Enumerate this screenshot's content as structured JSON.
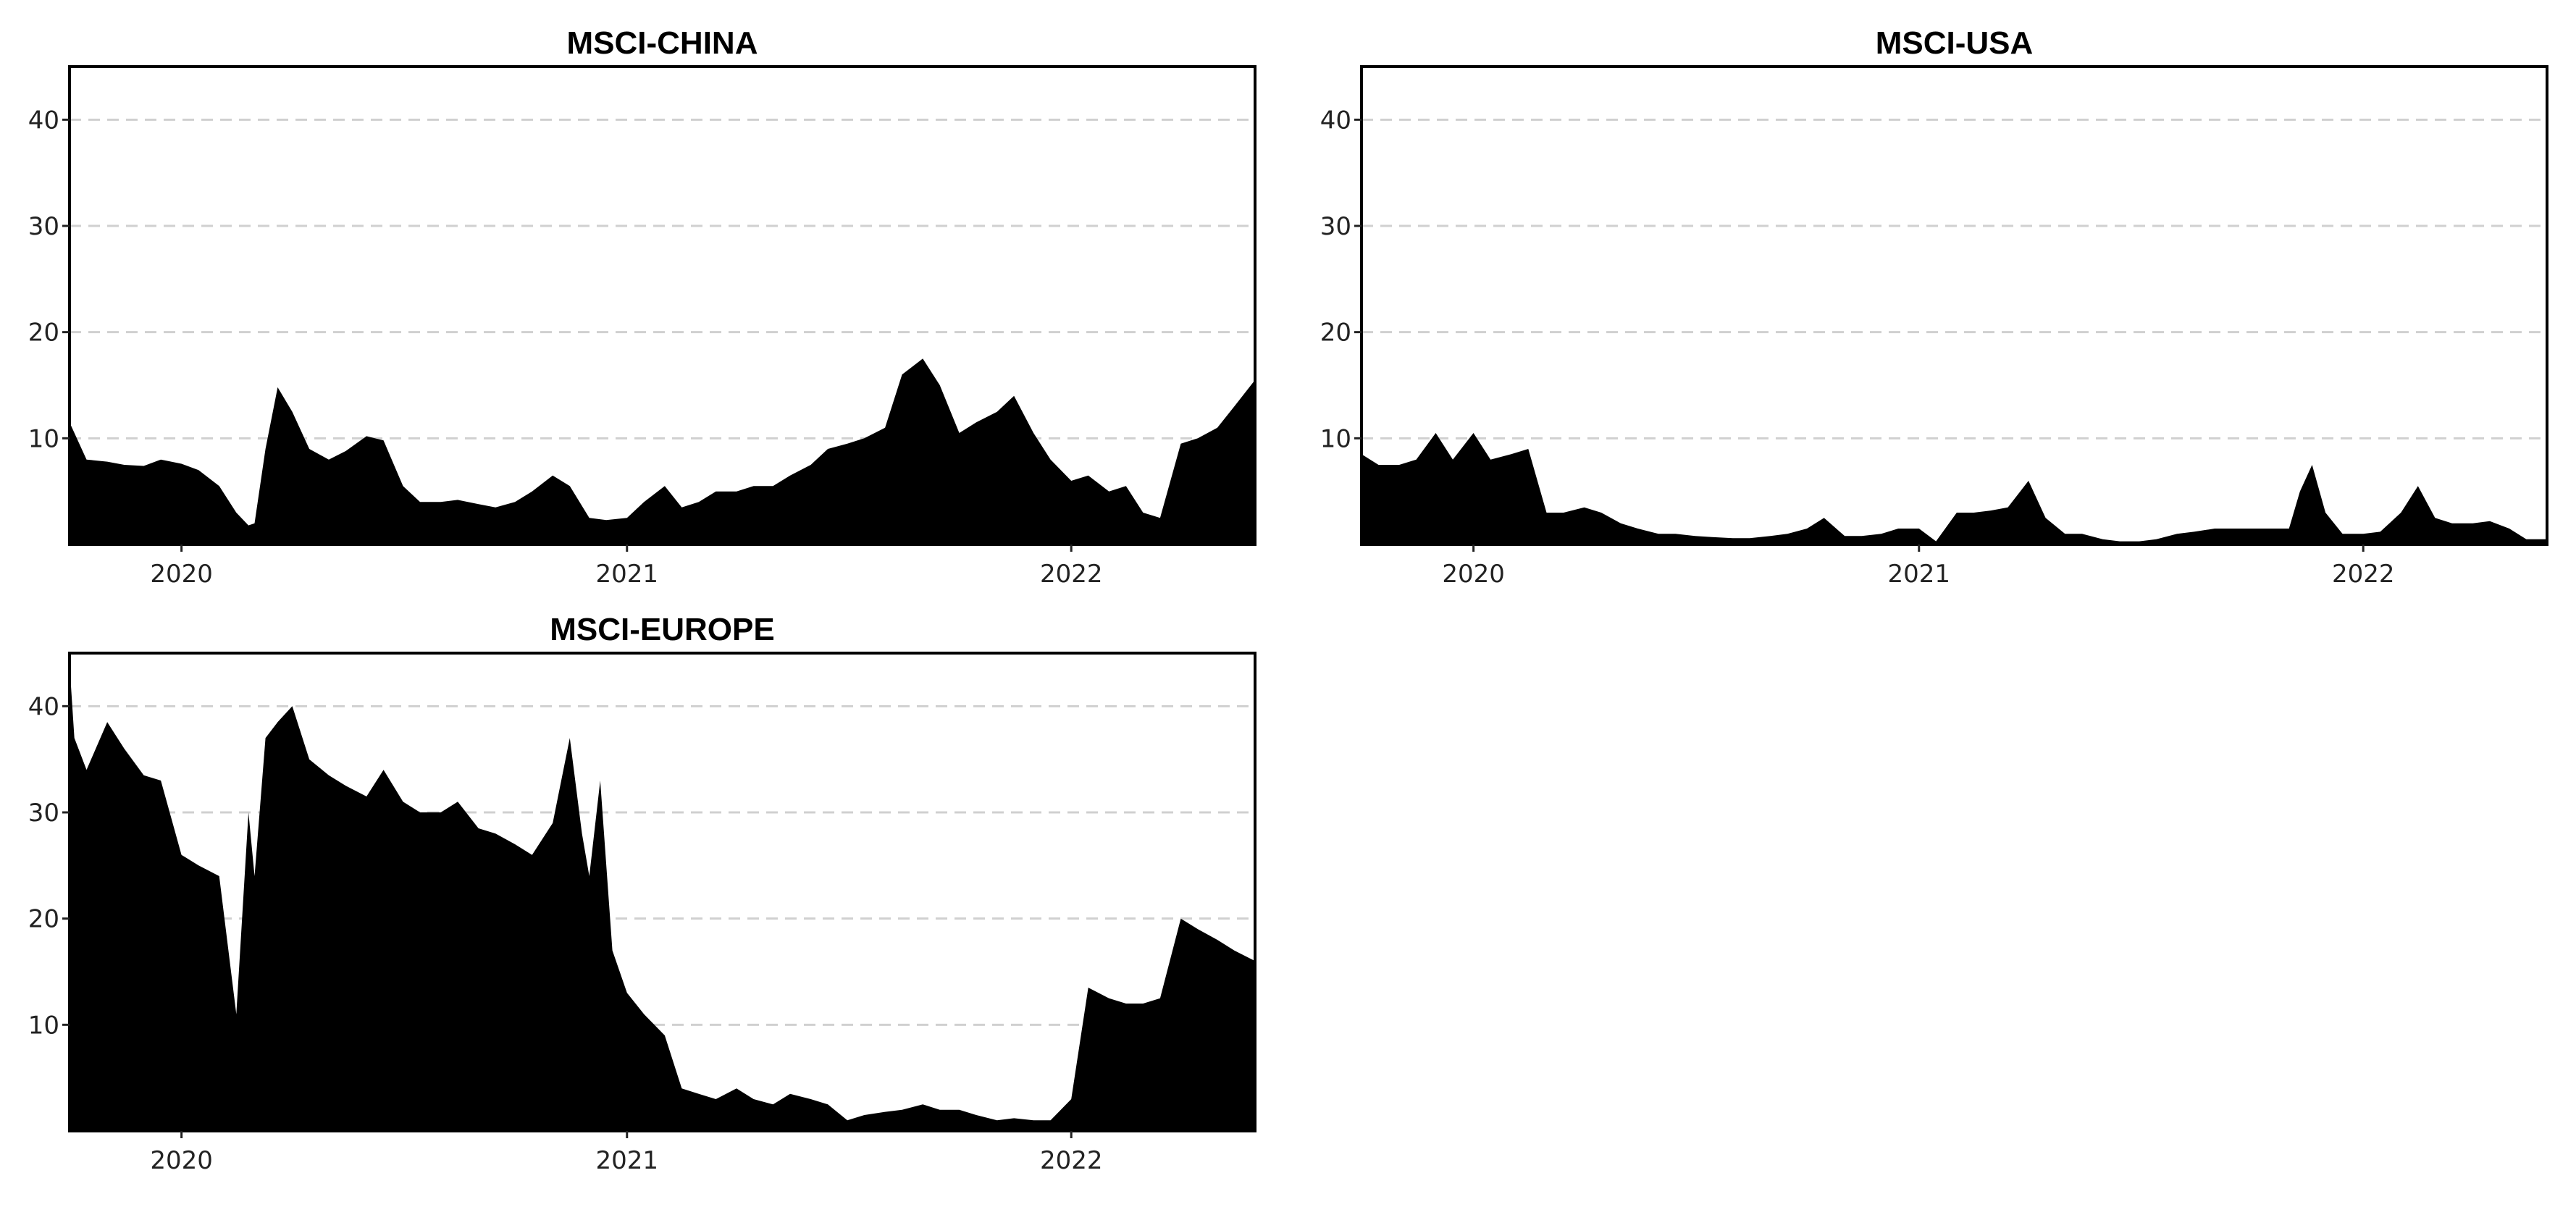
{
  "chart_data": [
    {
      "type": "area",
      "title": "MSCI-CHINA",
      "xlabel": "",
      "ylabel": "",
      "ylim": [
        0,
        45
      ],
      "xlim": [
        "2019-10-01",
        "2022-06-01"
      ],
      "yticks": [
        "10",
        "20",
        "30",
        "40"
      ],
      "xticks": [
        "2020",
        "2021",
        "2022"
      ],
      "grid": "horizontal dashed",
      "legend": "none",
      "color": "#000000",
      "x": [
        "2019-10-01",
        "2019-10-15",
        "2019-11-01",
        "2019-11-15",
        "2019-12-01",
        "2019-12-15",
        "2020-01-01",
        "2020-01-15",
        "2020-02-01",
        "2020-02-15",
        "2020-02-25",
        "2020-03-01",
        "2020-03-10",
        "2020-03-20",
        "2020-04-01",
        "2020-04-15",
        "2020-05-01",
        "2020-05-15",
        "2020-06-01",
        "2020-06-15",
        "2020-07-01",
        "2020-07-15",
        "2020-08-01",
        "2020-08-15",
        "2020-09-01",
        "2020-09-15",
        "2020-10-01",
        "2020-10-15",
        "2020-11-01",
        "2020-11-15",
        "2020-12-01",
        "2020-12-15",
        "2021-01-01",
        "2021-01-15",
        "2021-02-01",
        "2021-02-15",
        "2021-03-01",
        "2021-03-15",
        "2021-04-01",
        "2021-04-15",
        "2021-05-01",
        "2021-05-15",
        "2021-06-01",
        "2021-06-15",
        "2021-07-01",
        "2021-07-15",
        "2021-08-01",
        "2021-08-15",
        "2021-09-01",
        "2021-09-15",
        "2021-10-01",
        "2021-10-15",
        "2021-11-01",
        "2021-11-15",
        "2021-12-01",
        "2021-12-15",
        "2022-01-01",
        "2022-01-15",
        "2022-02-01",
        "2022-02-15",
        "2022-03-01",
        "2022-03-15",
        "2022-04-01",
        "2022-04-15",
        "2022-05-01",
        "2022-05-15",
        "2022-06-01"
      ],
      "y": [
        11.5,
        8.0,
        7.8,
        7.5,
        7.4,
        8.0,
        7.6,
        7.0,
        5.5,
        3.0,
        1.8,
        2.0,
        9.0,
        14.8,
        12.5,
        9.0,
        8.0,
        8.8,
        10.2,
        9.8,
        5.5,
        4.0,
        4.0,
        4.2,
        3.8,
        3.5,
        4.0,
        5.0,
        6.5,
        5.5,
        2.5,
        2.3,
        2.5,
        4.0,
        5.5,
        3.5,
        4.0,
        5.0,
        5.0,
        5.5,
        5.5,
        6.5,
        7.5,
        9.0,
        9.5,
        10.0,
        11.0,
        16.0,
        17.5,
        15.0,
        10.5,
        11.5,
        12.5,
        14.0,
        10.5,
        8.0,
        6.0,
        6.5,
        5.0,
        5.5,
        3.0,
        2.5,
        9.5,
        10.0,
        11.0,
        13.0,
        15.5
      ]
    },
    {
      "type": "area",
      "title": "MSCI-USA",
      "xlabel": "",
      "ylabel": "",
      "ylim": [
        0,
        45
      ],
      "xlim": [
        "2019-10-01",
        "2022-06-01"
      ],
      "yticks": [
        "10",
        "20",
        "30",
        "40"
      ],
      "xticks": [
        "2020",
        "2021",
        "2022"
      ],
      "grid": "horizontal dashed",
      "legend": "none",
      "color": "#000000",
      "x": [
        "2019-10-01",
        "2019-10-15",
        "2019-11-01",
        "2019-11-15",
        "2019-12-01",
        "2019-12-15",
        "2020-01-01",
        "2020-01-15",
        "2020-02-01",
        "2020-02-15",
        "2020-03-01",
        "2020-03-15",
        "2020-04-01",
        "2020-04-15",
        "2020-05-01",
        "2020-05-15",
        "2020-06-01",
        "2020-06-15",
        "2020-07-01",
        "2020-07-15",
        "2020-08-01",
        "2020-08-15",
        "2020-09-01",
        "2020-09-15",
        "2020-10-01",
        "2020-10-15",
        "2020-11-01",
        "2020-11-15",
        "2020-12-01",
        "2020-12-15",
        "2021-01-01",
        "2021-01-15",
        "2021-02-01",
        "2021-02-15",
        "2021-03-01",
        "2021-03-15",
        "2021-04-01",
        "2021-04-15",
        "2021-05-01",
        "2021-05-15",
        "2021-06-01",
        "2021-06-15",
        "2021-07-01",
        "2021-07-15",
        "2021-08-01",
        "2021-08-15",
        "2021-09-01",
        "2021-09-15",
        "2021-10-01",
        "2021-10-15",
        "2021-11-01",
        "2021-11-10",
        "2021-11-20",
        "2021-12-01",
        "2021-12-15",
        "2022-01-01",
        "2022-01-15",
        "2022-02-01",
        "2022-02-15",
        "2022-03-01",
        "2022-03-15",
        "2022-04-01",
        "2022-04-15",
        "2022-05-01",
        "2022-05-15",
        "2022-06-01"
      ],
      "y": [
        8.5,
        7.5,
        7.5,
        8.0,
        10.5,
        8.0,
        10.5,
        8.0,
        8.5,
        9.0,
        3.0,
        3.0,
        3.5,
        3.0,
        2.0,
        1.5,
        1.0,
        1.0,
        0.8,
        0.7,
        0.6,
        0.6,
        0.8,
        1.0,
        1.5,
        2.5,
        0.8,
        0.8,
        1.0,
        1.5,
        1.5,
        0.3,
        3.0,
        3.0,
        3.2,
        3.5,
        6.0,
        2.5,
        1.0,
        1.0,
        0.5,
        0.3,
        0.3,
        0.5,
        1.0,
        1.2,
        1.5,
        1.5,
        1.5,
        1.5,
        1.5,
        5.0,
        7.5,
        3.0,
        1.0,
        1.0,
        1.2,
        3.0,
        5.5,
        2.5,
        2.0,
        2.0,
        2.2,
        1.5,
        0.5,
        0.5
      ]
    },
    {
      "type": "area",
      "title": "MSCI-EUROPE",
      "xlabel": "",
      "ylabel": "",
      "ylim": [
        0,
        45
      ],
      "xlim": [
        "2019-10-01",
        "2022-06-01"
      ],
      "yticks": [
        "10",
        "20",
        "30",
        "40"
      ],
      "xticks": [
        "2020",
        "2021",
        "2022"
      ],
      "grid": "horizontal dashed",
      "legend": "none",
      "color": "#000000",
      "x": [
        "2019-10-01",
        "2019-10-05",
        "2019-10-15",
        "2019-11-01",
        "2019-11-15",
        "2019-12-01",
        "2019-12-15",
        "2020-01-01",
        "2020-01-15",
        "2020-02-01",
        "2020-02-15",
        "2020-02-25",
        "2020-03-01",
        "2020-03-10",
        "2020-03-20",
        "2020-04-01",
        "2020-04-15",
        "2020-05-01",
        "2020-05-15",
        "2020-06-01",
        "2020-06-15",
        "2020-07-01",
        "2020-07-15",
        "2020-08-01",
        "2020-08-15",
        "2020-09-01",
        "2020-09-15",
        "2020-10-01",
        "2020-10-15",
        "2020-11-01",
        "2020-11-15",
        "2020-11-25",
        "2020-12-01",
        "2020-12-10",
        "2020-12-20",
        "2021-01-01",
        "2021-01-15",
        "2021-02-01",
        "2021-02-15",
        "2021-03-01",
        "2021-03-15",
        "2021-04-01",
        "2021-04-15",
        "2021-05-01",
        "2021-05-15",
        "2021-06-01",
        "2021-06-15",
        "2021-07-01",
        "2021-07-15",
        "2021-08-01",
        "2021-08-15",
        "2021-09-01",
        "2021-09-15",
        "2021-10-01",
        "2021-10-15",
        "2021-11-01",
        "2021-11-15",
        "2021-12-01",
        "2021-12-15",
        "2022-01-01",
        "2022-01-15",
        "2022-02-01",
        "2022-02-15",
        "2022-03-01",
        "2022-03-15",
        "2022-04-01",
        "2022-04-15",
        "2022-05-01",
        "2022-05-15",
        "2022-06-01"
      ],
      "y": [
        44.0,
        37.0,
        34.0,
        38.5,
        36.0,
        33.5,
        33.0,
        26.0,
        25.0,
        24.0,
        11.0,
        30.0,
        24.0,
        37.0,
        38.5,
        40.0,
        35.0,
        33.5,
        32.5,
        31.5,
        34.0,
        31.0,
        30.0,
        30.0,
        31.0,
        28.5,
        28.0,
        27.0,
        26.0,
        29.0,
        37.0,
        28.0,
        24.0,
        33.0,
        17.0,
        13.0,
        11.0,
        9.0,
        4.0,
        3.5,
        3.0,
        4.0,
        3.0,
        2.5,
        3.5,
        3.0,
        2.5,
        1.0,
        1.5,
        1.8,
        2.0,
        2.5,
        2.0,
        2.0,
        1.5,
        1.0,
        1.2,
        1.0,
        1.0,
        3.0,
        13.5,
        12.5,
        12.0,
        12.0,
        12.5,
        20.0,
        19.0,
        18.0,
        17.0,
        16.0
      ]
    }
  ]
}
